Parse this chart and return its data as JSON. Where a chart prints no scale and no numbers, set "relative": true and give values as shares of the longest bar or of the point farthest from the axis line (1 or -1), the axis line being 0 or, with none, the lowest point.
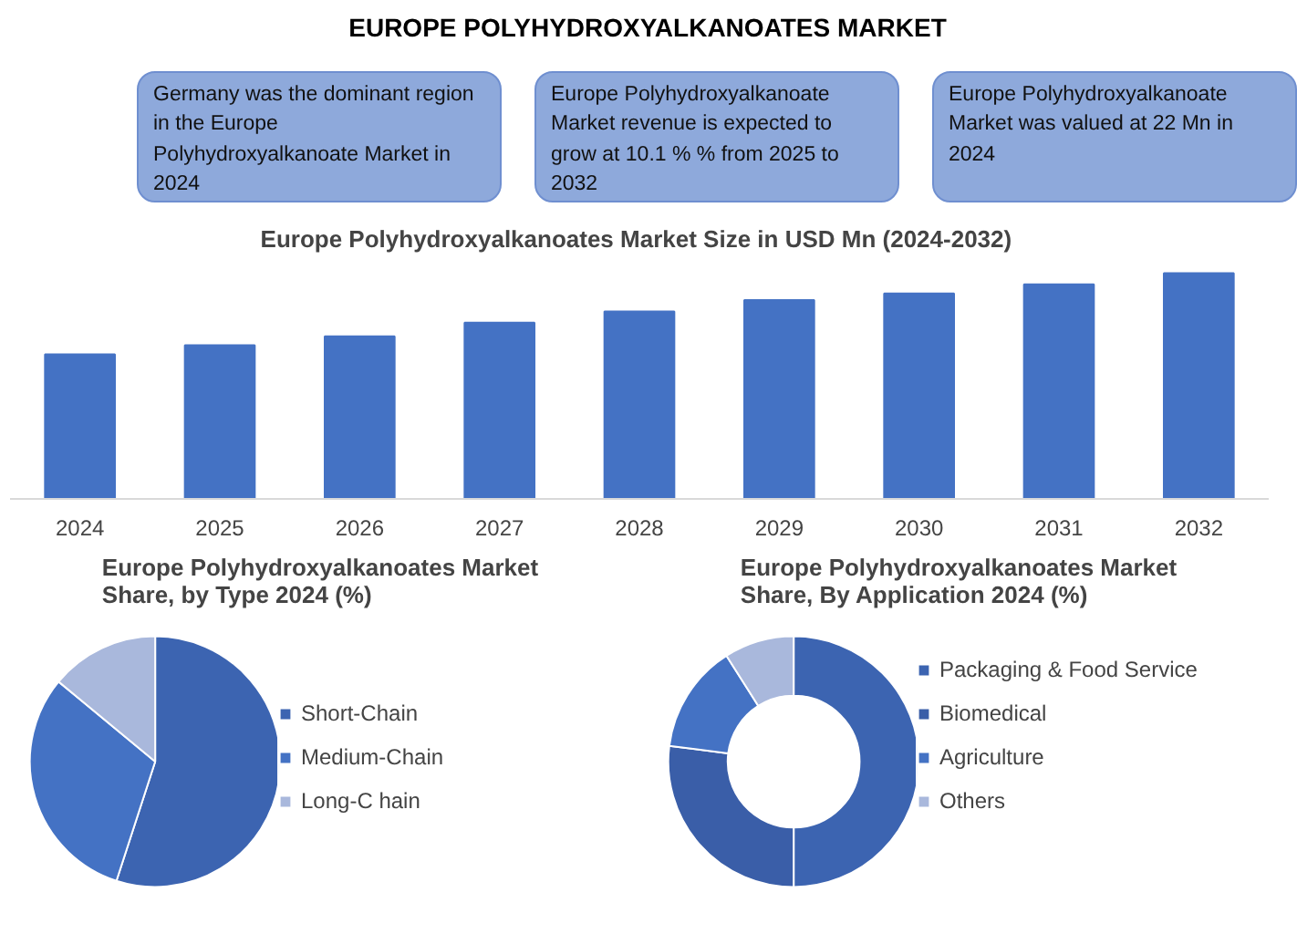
{
  "chart_data": [
    {
      "type": "other",
      "title": "EUROPE POLYHYDROXYALKANOATES MARKET",
      "annotations": [
        "Germany was the dominant region in the Europe Polyhydroxyalkanoate Market in 2024",
        "Europe Polyhydroxyalkanoate Market revenue is expected to grow at 10.1 % % from 2025 to 2032",
        "Europe Polyhydroxyalkanoate Market was valued at 22 Mn in 2024"
      ]
    },
    {
      "type": "bar",
      "title": "Europe Polyhydroxyalkanoates  Market Size in USD Mn (2024-2032)",
      "relative": true,
      "categories": [
        "2024",
        "2025",
        "2026",
        "2027",
        "2028",
        "2029",
        "2030",
        "2031",
        "2032"
      ],
      "values": [
        0.64,
        0.68,
        0.72,
        0.78,
        0.83,
        0.88,
        0.91,
        0.95,
        1
      ],
      "color": "#4472c4",
      "grid": false
    },
    {
      "type": "pie",
      "title": "Europe Polyhydroxyalkanoates Market Share, by Type 2024 (%)",
      "categories": [
        "Short-Chain",
        "Medium-Chain",
        "Long-C hain"
      ],
      "values": [
        55,
        31,
        14
      ],
      "colors": [
        "#3c64b1",
        "#4472c4",
        "#a9b8dc"
      ],
      "legend": "right"
    },
    {
      "type": "donut",
      "title": "Europe Polyhydroxyalkanoates Market Share, By Application 2024 (%)",
      "categories": [
        "Packaging & Food Service",
        "Biomedical",
        "Agriculture",
        "Others"
      ],
      "values": [
        50,
        27,
        14,
        9
      ],
      "colors": [
        "#3c64b1",
        "#3a5ea8",
        "#4472c4",
        "#a9b8dc"
      ],
      "legend": "right"
    }
  ]
}
